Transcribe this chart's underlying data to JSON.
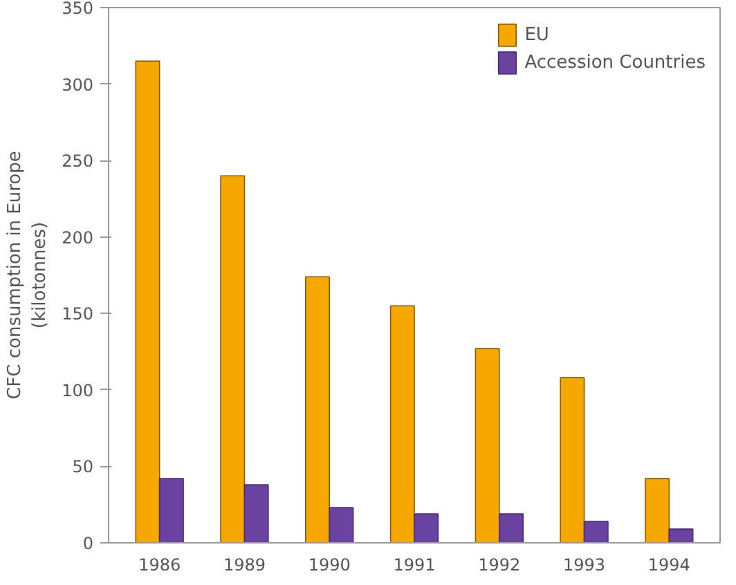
{
  "chart_data": {
    "type": "bar",
    "ylabel": "CFC consumption in Europe\n(kilotonnes)",
    "categories": [
      "1986",
      "1989",
      "1990",
      "1991",
      "1992",
      "1993",
      "1994"
    ],
    "series": [
      {
        "name": "EU",
        "color": "#f7a800",
        "values": [
          315,
          240,
          174,
          155,
          127,
          108,
          42
        ]
      },
      {
        "name": "Accession Countries",
        "color": "#6a42a0",
        "values": [
          42,
          38,
          23,
          19,
          19,
          14,
          9
        ]
      }
    ],
    "ylim": [
      0,
      350
    ],
    "yticks": [
      0,
      50,
      100,
      150,
      200,
      250,
      300,
      350
    ],
    "grid": false,
    "legend": "top right"
  }
}
